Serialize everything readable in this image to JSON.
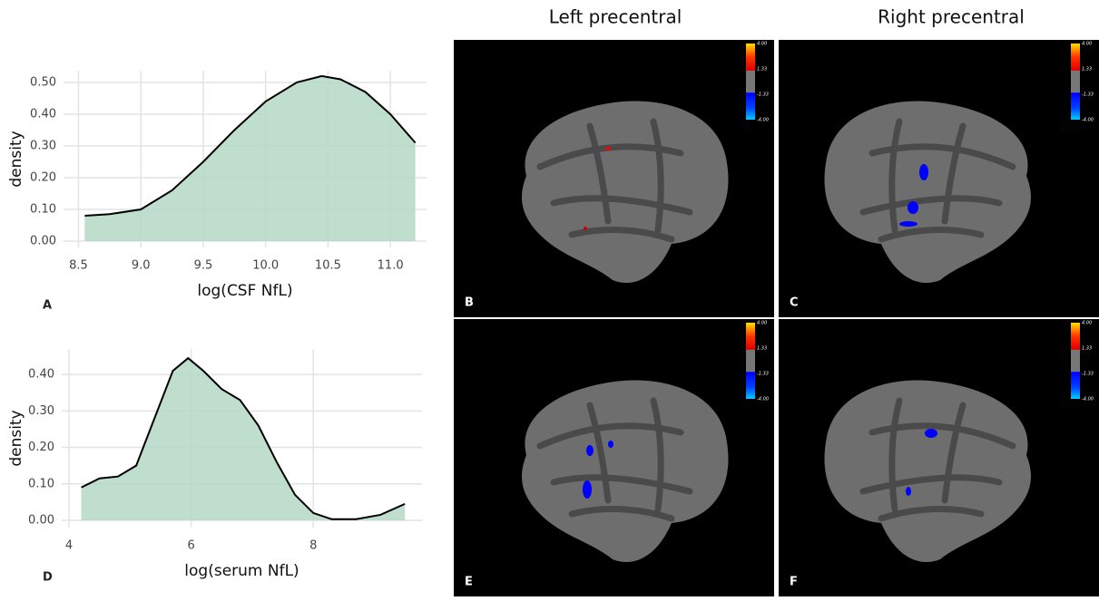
{
  "chart_data": [
    {
      "type": "area",
      "panel": "A",
      "xlabel": "log(CSF NfL)",
      "ylabel": "density",
      "color": "#b5d8c4",
      "line_color": "#000000",
      "grid": true,
      "x": [
        8.55,
        8.75,
        9.0,
        9.25,
        9.5,
        9.75,
        10.0,
        10.25,
        10.45,
        10.6,
        10.8,
        11.0,
        11.2
      ],
      "values": [
        0.08,
        0.085,
        0.1,
        0.16,
        0.25,
        0.35,
        0.44,
        0.5,
        0.52,
        0.51,
        0.47,
        0.4,
        0.31
      ],
      "xlim": [
        8.38,
        11.29
      ],
      "ylim": [
        -0.02,
        0.537
      ],
      "xticks": [
        8.5,
        {
          "value": 9,
          "label": "9.0"
        },
        9.5,
        {
          "value": 10,
          "label": "10.0"
        },
        10.5,
        {
          "value": 11,
          "label": "11.0"
        }
      ],
      "yticks": [
        {
          "value": 0,
          "label": "0.00"
        },
        {
          "value": 0.1,
          "label": "0.10"
        },
        {
          "value": 0.2,
          "label": "0.20"
        },
        {
          "value": 0.3,
          "label": "0.30"
        },
        {
          "value": 0.4,
          "label": "0.40"
        },
        {
          "value": 0.5,
          "label": "0.50"
        }
      ]
    },
    {
      "type": "area",
      "panel": "D",
      "xlabel": "log(serum NfL)",
      "ylabel": "density",
      "color": "#b5d8c4",
      "line_color": "#000000",
      "grid": true,
      "x": [
        4.2,
        4.5,
        4.8,
        5.1,
        5.4,
        5.7,
        5.95,
        6.2,
        6.5,
        6.8,
        7.1,
        7.4,
        7.7,
        8.0,
        8.3,
        8.7,
        9.1,
        9.5
      ],
      "values": [
        0.09,
        0.115,
        0.12,
        0.15,
        0.28,
        0.41,
        0.445,
        0.41,
        0.36,
        0.33,
        0.26,
        0.16,
        0.07,
        0.02,
        0.003,
        0.003,
        0.015,
        0.045
      ],
      "xlim": [
        3.88,
        9.78
      ],
      "ylim": [
        -0.02,
        0.47
      ],
      "xticks": [
        4,
        6,
        8
      ],
      "yticks": [
        {
          "value": 0,
          "label": "0.00"
        },
        {
          "value": 0.1,
          "label": "0.10"
        },
        {
          "value": 0.2,
          "label": "0.20"
        },
        {
          "value": 0.3,
          "label": "0.30"
        },
        {
          "value": 0.4,
          "label": "0.40"
        }
      ]
    }
  ],
  "brain_panels": {
    "column_titles": [
      "Left precentral",
      "Right precentral"
    ],
    "labels": [
      "B",
      "C",
      "E",
      "F"
    ],
    "colorbar_ticks": [
      {
        "value": 4,
        "label": "4.00"
      },
      {
        "value": 1.33,
        "label": "1.33"
      },
      {
        "value": -1.33,
        "label": "-1.33"
      },
      {
        "value": -4,
        "label": "-4.00"
      }
    ]
  }
}
